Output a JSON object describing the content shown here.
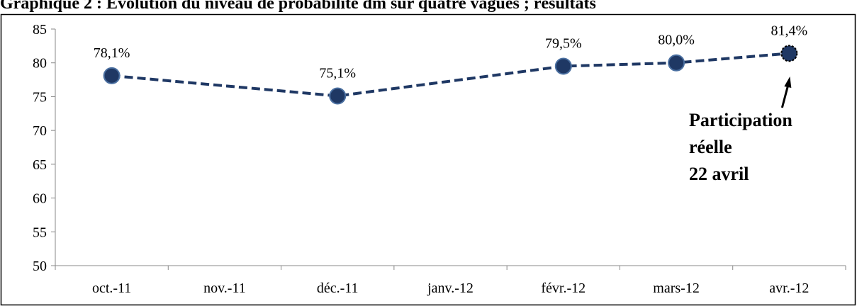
{
  "chart_data": {
    "type": "line",
    "title": "Graphique 2 : Evolution du niveau de probabilité dm sur quatre vagues ; résultats",
    "categories": [
      "oct.-11",
      "nov.-11",
      "déc.-11",
      "janv.-12",
      "févr.-12",
      "mars-12",
      "avr.-12"
    ],
    "series": [
      {
        "color": "#1f3864",
        "values": [
          78.1,
          null,
          75.1,
          null,
          79.5,
          80.0,
          81.4
        ],
        "value_labels": [
          "78,1%",
          null,
          "75,1%",
          null,
          "79,5%",
          "80,0%",
          "81,4%"
        ]
      }
    ],
    "span_gaps": true,
    "ylim": [
      50,
      85
    ],
    "yticks": [
      50,
      55,
      60,
      65,
      70,
      75,
      80,
      85
    ],
    "annotation": [
      "Participation",
      "réelle",
      "22 avril"
    ]
  }
}
